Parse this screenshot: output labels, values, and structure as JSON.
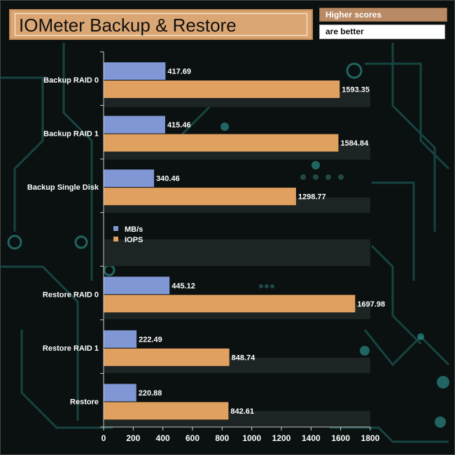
{
  "header": {
    "title": "IOMeter Backup & Restore",
    "note_line1": "Higher scores",
    "note_line2": "are better"
  },
  "colors": {
    "mbs": "#7f97d4",
    "iops": "#e0a05f",
    "background": "#0b1010",
    "circuit": "#1f6f6c"
  },
  "chart_data": {
    "type": "bar",
    "orientation": "horizontal",
    "categories": [
      "Backup RAID 0",
      "Backup RAID 1",
      "Backup Single Disk",
      "",
      "Restore RAID 0",
      "Restore RAID 1",
      "Restore"
    ],
    "series": [
      {
        "name": "MB/s",
        "values": [
          417.69,
          415.46,
          340.46,
          null,
          445.12,
          222.49,
          220.88
        ]
      },
      {
        "name": "IOPS",
        "values": [
          1593.35,
          1584.84,
          1298.77,
          null,
          1697.98,
          848.74,
          842.61
        ]
      }
    ],
    "xlim": [
      0,
      1800
    ],
    "xticks": [
      0,
      200,
      400,
      600,
      800,
      1000,
      1200,
      1400,
      1600,
      1800
    ],
    "legend_position": "center-left",
    "grid": false
  }
}
